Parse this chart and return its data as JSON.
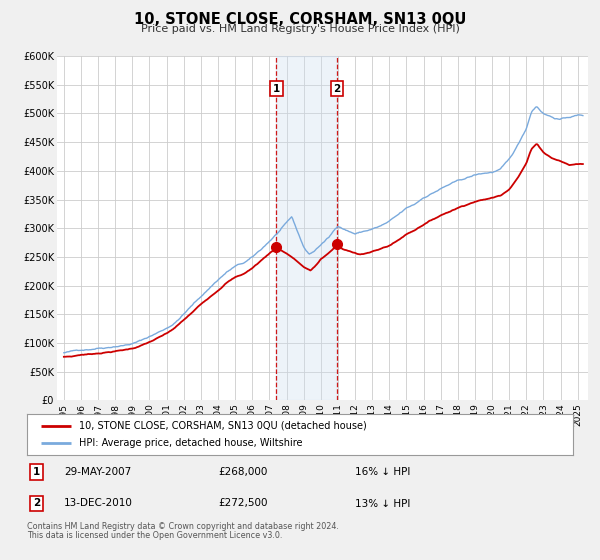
{
  "title": "10, STONE CLOSE, CORSHAM, SN13 0QU",
  "subtitle": "Price paid vs. HM Land Registry's House Price Index (HPI)",
  "ylim": [
    0,
    600000
  ],
  "yticks": [
    0,
    50000,
    100000,
    150000,
    200000,
    250000,
    300000,
    350000,
    400000,
    450000,
    500000,
    550000,
    600000
  ],
  "ytick_labels": [
    "£0",
    "£50K",
    "£100K",
    "£150K",
    "£200K",
    "£250K",
    "£300K",
    "£350K",
    "£400K",
    "£450K",
    "£500K",
    "£550K",
    "£600K"
  ],
  "xlim_start": 1994.6,
  "xlim_end": 2025.6,
  "xticks": [
    1995,
    1996,
    1997,
    1998,
    1999,
    2000,
    2001,
    2002,
    2003,
    2004,
    2005,
    2006,
    2007,
    2008,
    2009,
    2010,
    2011,
    2012,
    2013,
    2014,
    2015,
    2016,
    2017,
    2018,
    2019,
    2020,
    2021,
    2022,
    2023,
    2024,
    2025
  ],
  "sale1_date": 2007.41,
  "sale1_price": 268000,
  "sale2_date": 2010.95,
  "sale2_price": 272500,
  "sale_color": "#cc0000",
  "hpi_color": "#7aaadd",
  "legend_sale_label": "10, STONE CLOSE, CORSHAM, SN13 0QU (detached house)",
  "legend_hpi_label": "HPI: Average price, detached house, Wiltshire",
  "annotation1_date": "29-MAY-2007",
  "annotation1_price": "£268,000",
  "annotation1_pct": "16% ↓ HPI",
  "annotation2_date": "13-DEC-2010",
  "annotation2_price": "£272,500",
  "annotation2_pct": "13% ↓ HPI",
  "footnote1": "Contains HM Land Registry data © Crown copyright and database right 2024.",
  "footnote2": "This data is licensed under the Open Government Licence v3.0.",
  "bg_color": "#f0f0f0",
  "plot_bg_color": "#ffffff",
  "grid_color": "#cccccc",
  "shade_color": "#ccddf0"
}
